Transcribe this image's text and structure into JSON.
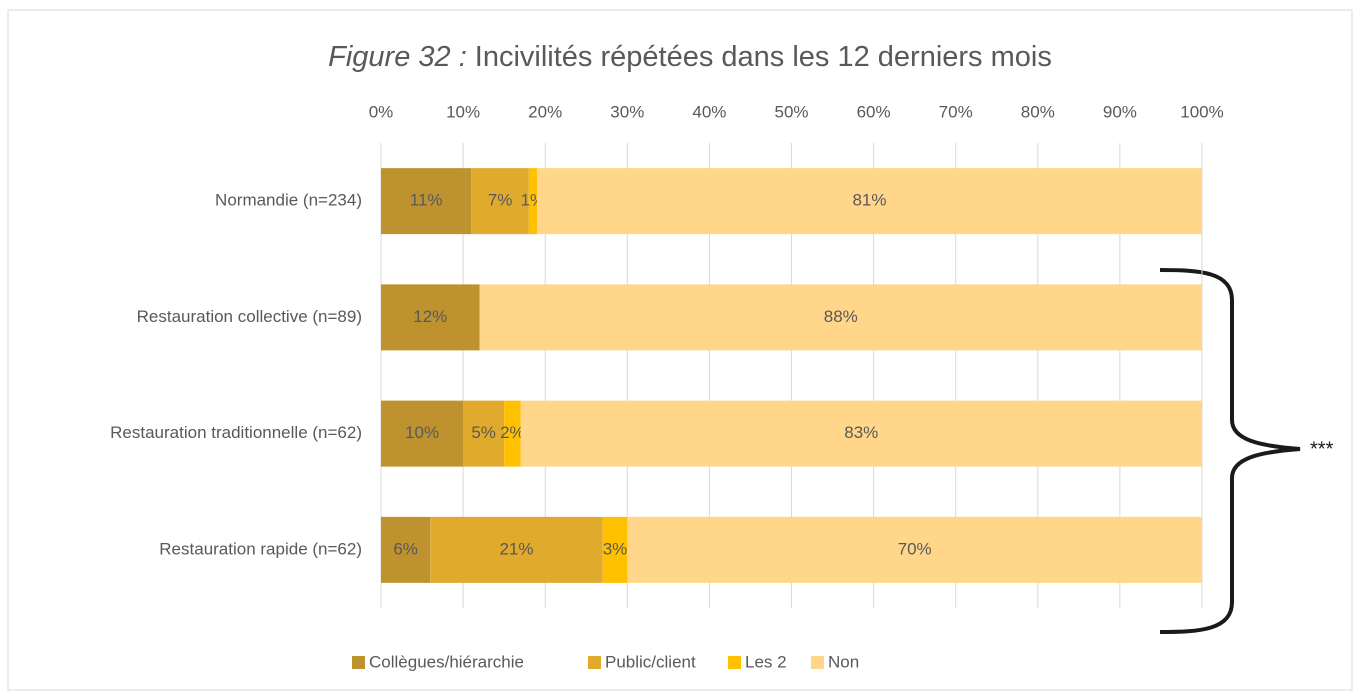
{
  "chart_data": {
    "type": "stacked_barh",
    "title_label": "Figure 32 :",
    "title": "Incivilités répétées dans les 12 derniers mois",
    "categories": [
      "Normandie (n=234)",
      "Restauration collective (n=89)",
      "Restauration traditionnelle (n=62)",
      "Restauration rapide (n=62)"
    ],
    "series": [
      {
        "name": "Collègues/hiérarchie",
        "color": "#bf9230",
        "values": [
          11,
          12,
          10,
          6
        ],
        "value_labels": [
          "11%",
          "12%",
          "10%",
          "6%"
        ]
      },
      {
        "name": "Public/client",
        "color": "#e0aa2c",
        "values": [
          7,
          0,
          5,
          21
        ],
        "value_labels": [
          "7%",
          null,
          "5%",
          "21%"
        ]
      },
      {
        "name": "Les 2",
        "color": "#ffc000",
        "values": [
          1,
          0,
          2,
          3
        ],
        "value_labels": [
          "1%",
          null,
          "2%",
          "3%"
        ]
      },
      {
        "name": "Non",
        "color": "#ffd68a",
        "values": [
          81,
          88,
          83,
          70
        ],
        "value_labels": [
          "81%",
          "88%",
          "83%",
          "70%"
        ]
      }
    ],
    "xlim": [
      0,
      100
    ],
    "xticks": [
      {
        "value": 0,
        "label": "0%"
      },
      {
        "value": 10,
        "label": "10%"
      },
      {
        "value": 20,
        "label": "20%"
      },
      {
        "value": 30,
        "label": "30%"
      },
      {
        "value": 40,
        "label": "40%"
      },
      {
        "value": 50,
        "label": "50%"
      },
      {
        "value": 60,
        "label": "60%"
      },
      {
        "value": 70,
        "label": "70%"
      },
      {
        "value": 80,
        "label": "80%"
      },
      {
        "value": 90,
        "label": "90%"
      },
      {
        "value": 100,
        "label": "100%"
      }
    ],
    "grid": true,
    "legend": "bottom",
    "annotation": "***"
  }
}
